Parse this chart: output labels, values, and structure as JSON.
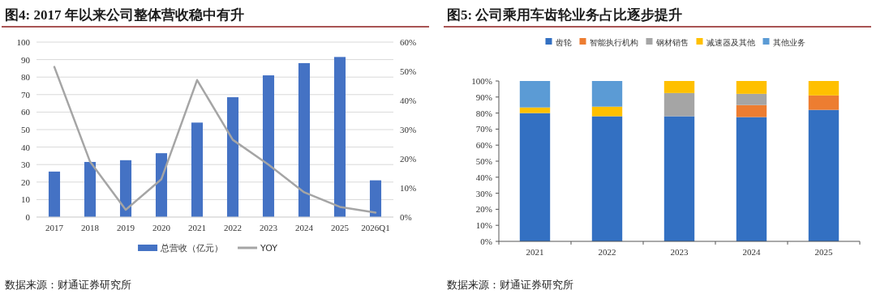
{
  "chart_data": [
    {
      "type": "bar",
      "title": "图4: 2017 年以来公司整体营收稳中有升",
      "categories": [
        "2017",
        "2018",
        "2019",
        "2020",
        "2021",
        "2022",
        "2023",
        "2024",
        "2025",
        "2026Q1"
      ],
      "series": [
        {
          "name": "总营收（亿元）",
          "color": "#4472c4",
          "values": [
            26,
            31.5,
            32.5,
            36.5,
            54,
            68.5,
            81,
            88,
            91.5,
            21
          ]
        },
        {
          "name": "YOY",
          "type": "line",
          "axis": "y2",
          "color": "#a5a5a5",
          "values": [
            51.5,
            19,
            2.5,
            13,
            47,
            26.5,
            18,
            8.5,
            3.5,
            1.5
          ]
        }
      ],
      "ylim": [
        0,
        100
      ],
      "yticks": [
        0,
        10,
        20,
        30,
        40,
        50,
        60,
        70,
        80,
        90,
        100
      ],
      "y2lim": [
        0,
        60
      ],
      "y2ticks": [
        {
          "value": 0,
          "label": "0%"
        },
        {
          "value": 10,
          "label": "10%"
        },
        {
          "value": 20,
          "label": "20%"
        },
        {
          "value": 30,
          "label": "30%"
        },
        {
          "value": 40,
          "label": "40%"
        },
        {
          "value": 50,
          "label": "50%"
        },
        {
          "value": 60,
          "label": "60%"
        }
      ],
      "grid": "y",
      "legend": "bottom",
      "annotations": [
        "数据来源：财通证券研究所"
      ]
    },
    {
      "type": "bar",
      "stacked": true,
      "title": "图5: 公司乘用车齿轮业务占比逐步提升",
      "categories": [
        "2021",
        "2022",
        "2023",
        "2024",
        "2025"
      ],
      "series": [
        {
          "name": "齿轮",
          "color": "#3370c2",
          "values": [
            80,
            78,
            78,
            77.5,
            82
          ]
        },
        {
          "name": "智能执行机构",
          "color": "#ed7d31",
          "values": [
            0,
            0,
            0,
            7.5,
            9
          ]
        },
        {
          "name": "钢材销售",
          "color": "#a5a5a5",
          "values": [
            0,
            0,
            14.5,
            7,
            0
          ]
        },
        {
          "name": "减速器及其他",
          "color": "#ffc000",
          "values": [
            3.5,
            6,
            7.5,
            8,
            9
          ]
        },
        {
          "name": "其他业务",
          "color": "#5b9bd5",
          "values": [
            16.5,
            16,
            0,
            0,
            0
          ]
        }
      ],
      "ylim": [
        0,
        100
      ],
      "yticks": [
        {
          "value": 0,
          "label": "0%"
        },
        {
          "value": 10,
          "label": "10%"
        },
        {
          "value": 20,
          "label": "20%"
        },
        {
          "value": 30,
          "label": "30%"
        },
        {
          "value": 40,
          "label": "40%"
        },
        {
          "value": 50,
          "label": "50%"
        },
        {
          "value": 60,
          "label": "60%"
        },
        {
          "value": 70,
          "label": "70%"
        },
        {
          "value": 80,
          "label": "80%"
        },
        {
          "value": 90,
          "label": "90%"
        },
        {
          "value": 100,
          "label": "100%"
        }
      ],
      "grid": false,
      "legend": "top",
      "annotations": [
        "数据来源：财通证券研究所"
      ]
    }
  ]
}
